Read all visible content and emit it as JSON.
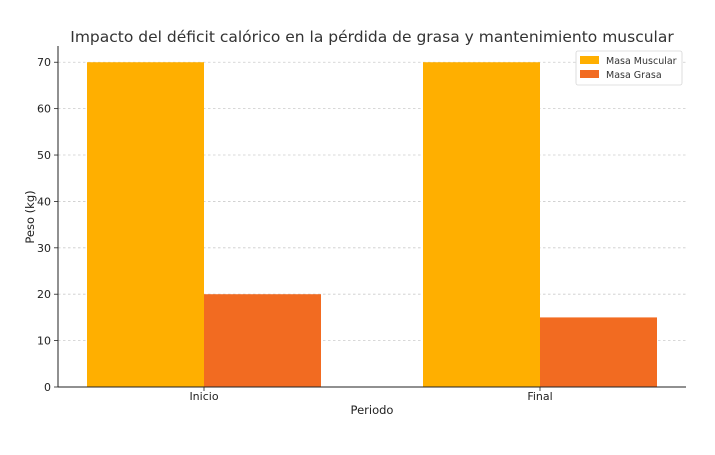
{
  "chart_data": {
    "type": "bar",
    "title": "Impacto del déficit calórico en la pérdida de grasa y mantenimiento muscular",
    "xlabel": "Periodo",
    "ylabel": "Peso (kg)",
    "categories": [
      "Inicio",
      "Final"
    ],
    "series": [
      {
        "name": "Masa Muscular",
        "values": [
          70,
          70
        ],
        "color": "#FFAF00"
      },
      {
        "name": "Masa Grasa",
        "values": [
          20,
          15
        ],
        "color": "#F26B21"
      }
    ],
    "ylim": [
      0,
      73.5
    ],
    "yticks": [
      0,
      10,
      20,
      30,
      40,
      50,
      60,
      70
    ],
    "grid": true,
    "legend_position": "top-right"
  }
}
